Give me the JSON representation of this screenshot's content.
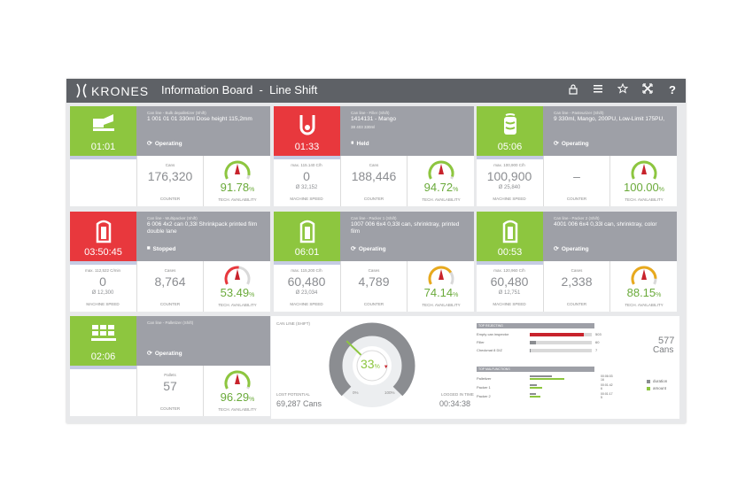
{
  "app": {
    "logo": "KRONES",
    "title": "Information Board  -  Line Shift"
  },
  "toolbar": {
    "icons": [
      "lock-icon",
      "menu-icon",
      "star-icon",
      "fullscreen-icon",
      "help-icon"
    ],
    "help_label": "?"
  },
  "colors": {
    "green": "#8dc63f",
    "red": "#e8383d",
    "header_gray": "#9ea0a7",
    "topbar": "#5e6166"
  },
  "cards": [
    {
      "line": "Can line - Bulk depalletizer (Shift)",
      "product": "1 001 01 01 330ml Dose height 115,2mm",
      "sub": "",
      "status": "Operating",
      "status_icon": "operating-icon",
      "time": "01:01",
      "color": "green",
      "speed_cap": "",
      "speed": "",
      "speed_avg": "",
      "speed_label": "",
      "counter_cap": "Cans",
      "counter": "176,320",
      "counter_label": "COUNTER",
      "avail": "91.78",
      "avail_unit": "%",
      "avail_label": "TECH. AVAILABILITY",
      "gauge_level": 0.92,
      "gauge_color": "#8dc63f"
    },
    {
      "line": "Can line - Filler (Shift)",
      "product": "1414131 - Mango",
      "sub": "38 403 330ml",
      "status": "Held",
      "status_icon": "held-icon",
      "time": "01:33",
      "color": "red",
      "speed_cap": "max. 115.140 C/h",
      "speed": "0",
      "speed_avg": "Ø  32,152",
      "speed_label": "MACHINE SPEED",
      "counter_cap": "Cans",
      "counter": "188,446",
      "counter_label": "COUNTER",
      "avail": "94.72",
      "avail_unit": "%",
      "avail_label": "TECH. AVAILABILITY",
      "gauge_level": 0.95,
      "gauge_color": "#8dc63f"
    },
    {
      "line": "Can line - Pasteurizer (Shift)",
      "product": "9 330ml, Mango, 200PU, Low-Limit 175PU,",
      "sub": "",
      "status": "Operating",
      "status_icon": "operating-icon",
      "time": "05:06",
      "color": "green",
      "speed_cap": "max. 100,900 C/h",
      "speed": "100,900",
      "speed_avg": "Ø  25,840",
      "speed_label": "MACHINE SPEED",
      "counter_cap": "",
      "counter": "–",
      "counter_label": "COUNTER",
      "avail": "100.00",
      "avail_unit": "%",
      "avail_label": "TECH. AVAILABILITY",
      "gauge_level": 1.0,
      "gauge_color": "#8dc63f"
    },
    {
      "line": "Can line - Multipacker (Shift)",
      "product": "6 006 4x2 can 0,33l Shrinkpack printed film double lane",
      "sub": "",
      "status": "Stopped",
      "status_icon": "stopped-icon",
      "time": "03:50:45",
      "color": "red",
      "speed_cap": "max. 112,522 C/min",
      "speed": "0",
      "speed_avg": "Ø  12,300",
      "speed_label": "MACHINE SPEED",
      "counter_cap": "Cases",
      "counter": "8,764",
      "counter_label": "COUNTER",
      "avail": "53.49",
      "avail_unit": "%",
      "avail_label": "TECH. AVAILABILITY",
      "gauge_level": 0.53,
      "gauge_color": "#e8383d"
    },
    {
      "line": "Can line - Packer 1 (Shift)",
      "product": "1007 006 6x4 0,33l can, shrinktray, printed film",
      "sub": "",
      "status": "Operating",
      "status_icon": "operating-icon",
      "time": "06:01",
      "color": "green",
      "speed_cap": "max. 115,200 C/h",
      "speed": "60,480",
      "speed_avg": "Ø  23,034",
      "speed_label": "MACHINE SPEED",
      "counter_cap": "Cases",
      "counter": "4,789",
      "counter_label": "COUNTER",
      "avail": "74.14",
      "avail_unit": "%",
      "avail_label": "TECH. AVAILABILITY",
      "gauge_level": 0.74,
      "gauge_color": "#e8a91d"
    },
    {
      "line": "Can line - Packer 2 (Shift)",
      "product": "4001 006 6x4 0,33l can, shrinktray, color",
      "sub": "",
      "status": "Operating",
      "status_icon": "operating-icon",
      "time": "00:53",
      "color": "green",
      "speed_cap": "max. 120,960 C/h",
      "speed": "60,480",
      "speed_avg": "Ø  12,751",
      "speed_label": "MACHINE SPEED",
      "counter_cap": "Cases",
      "counter": "2,338",
      "counter_label": "COUNTER",
      "avail": "88.15",
      "avail_unit": "%",
      "avail_label": "TECH. AVAILABILITY",
      "gauge_level": 0.88,
      "gauge_color": "#e8a91d"
    },
    {
      "line": "Can line - Palletizer (Shift)",
      "product": "",
      "sub": "",
      "status": "Operating",
      "status_icon": "operating-icon",
      "time": "02:06",
      "color": "green",
      "speed_cap": "",
      "speed": "",
      "speed_avg": "",
      "speed_label": "",
      "counter_cap": "Pallets",
      "counter": "57",
      "counter_label": "COUNTER",
      "avail": "96.29",
      "avail_unit": "%",
      "avail_label": "TECH. AVAILABILITY",
      "gauge_level": 0.96,
      "gauge_color": "#8dc63f"
    }
  ],
  "summary": {
    "title": "CAN LINE (SHIFT)",
    "efficiency": "33",
    "efficiency_unit": "%",
    "efficiency_level": 0.33,
    "scale_min": "0%",
    "scale_max": "100%",
    "lost_cap": "LOST POTENTIAL",
    "lost_val": "69,287 Cans",
    "logged_cap": "LOGGED IN TIME",
    "logged_val": "00:34:38",
    "rejecting_head": "TOP REJECTING",
    "rejecting": [
      {
        "label": "Empty can inspector",
        "value": "503",
        "level": 0.87,
        "color": "#c8232c"
      },
      {
        "label": "Filler",
        "value": "60",
        "level": 0.1,
        "color": "#8b8d91"
      },
      {
        "label": "Checkmat 8 DIZ",
        "value": "7",
        "level": 0.02,
        "color": "#8b8d91"
      }
    ],
    "total_rejects": "577",
    "total_rejects_unit": "Cans",
    "malfunction_head": "TOP MALFUNCTIONS",
    "malfunctions": [
      {
        "label": "Palletizer",
        "duration": "00:06:03",
        "amount": "16",
        "dur_level": 0.35,
        "amt_level": 0.55
      },
      {
        "label": "Packer 1",
        "duration": "00:01:42",
        "amount": "6",
        "dur_level": 0.12,
        "amt_level": 0.2
      },
      {
        "label": "Packer 2",
        "duration": "00:01:17",
        "amount": "5",
        "dur_level": 0.1,
        "amt_level": 0.17
      }
    ],
    "legend_duration": "duration",
    "legend_amount": "amount"
  }
}
